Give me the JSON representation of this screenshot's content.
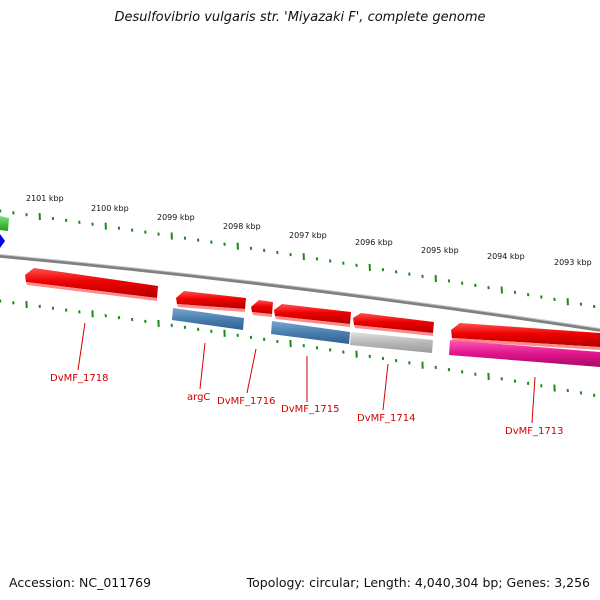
{
  "title": "Desulfovibrio vulgaris str. 'Miyazaki F', complete genome",
  "footer": {
    "accession": "Accession: NC_011769",
    "topology": "Topology: circular; Length: 4,040,304 bp; Genes: 3,256"
  },
  "kbp_labels": [
    "2101 kbp",
    "2100 kbp",
    "2099 kbp",
    "2098 kbp",
    "2097 kbp",
    "2096 kbp",
    "2095 kbp",
    "2094 kbp",
    "2093 kbp"
  ],
  "gene_labels": [
    "DvMF_1718",
    "argC",
    "DvMF_1716",
    "DvMF_1715",
    "DvMF_1714",
    "DvMF_1713"
  ],
  "colors": {
    "cds": "#ee0000",
    "cog_blue": "#4a7fb0",
    "cog_gray": "#b8b8b8",
    "cog_pink": "#e0148c",
    "label": "#d40000",
    "tick": "#1a8a1a",
    "backbone": "#808080"
  }
}
